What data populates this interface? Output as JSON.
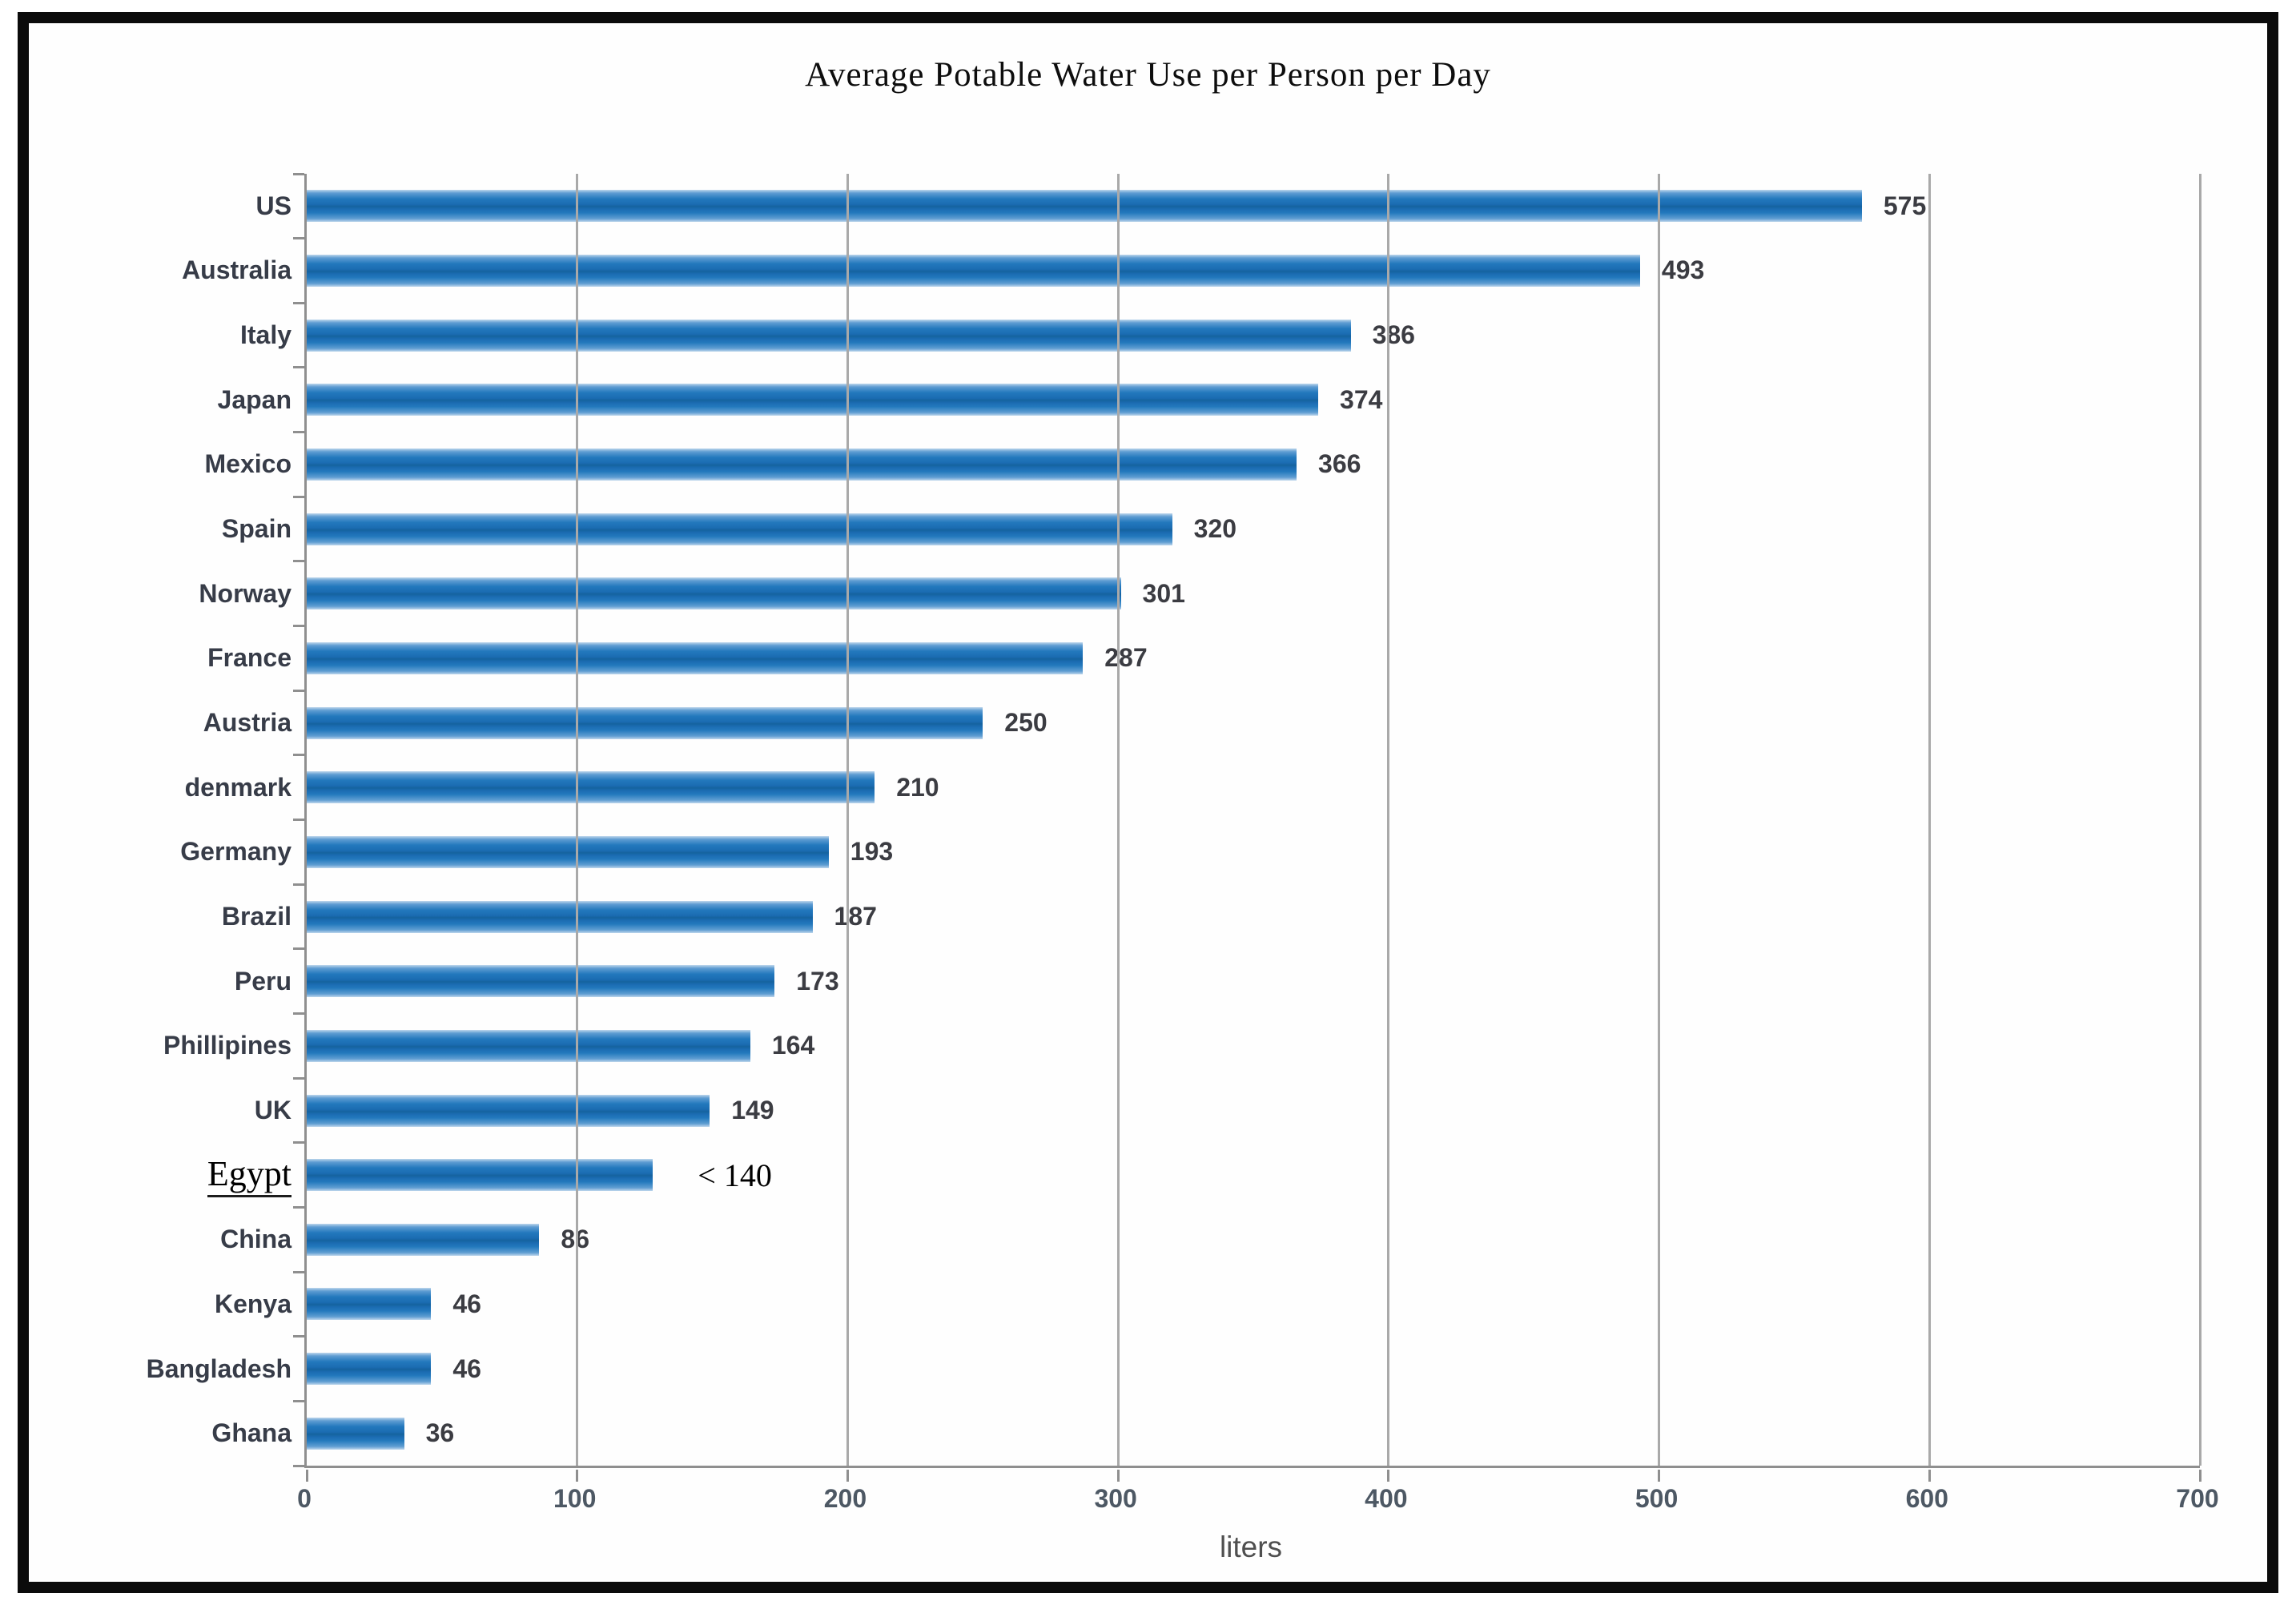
{
  "title": "Average Potable Water Use per Person per Day",
  "chart_data": {
    "type": "bar",
    "orientation": "horizontal",
    "title": "Average Potable Water Use per Person per Day",
    "xlabel": "liters",
    "ylabel": "",
    "xlim": [
      0,
      700
    ],
    "x_ticks": [
      "0",
      "100",
      "200",
      "300",
      "400",
      "500",
      "600",
      "700"
    ],
    "grid": "vertical gridlines at every 100 liters",
    "legend": "none",
    "categories": [
      "US",
      "Australia",
      "Italy",
      "Japan",
      "Mexico",
      "Spain",
      "Norway",
      "France",
      "Austria",
      "denmark",
      "Germany",
      "Brazil",
      "Peru",
      "Phillipines",
      "UK",
      "Egypt",
      "China",
      "Kenya",
      "Bangladesh",
      "Ghana"
    ],
    "values": [
      575,
      493,
      386,
      374,
      366,
      320,
      301,
      287,
      250,
      210,
      193,
      187,
      173,
      164,
      149,
      128,
      86,
      46,
      46,
      36
    ],
    "value_labels": [
      "575",
      "493",
      "386",
      "374",
      "366",
      "320",
      "301",
      "287",
      "250",
      "210",
      "193",
      "187",
      "173",
      "164",
      "149",
      "< 140",
      "86",
      "46",
      "46",
      "36"
    ],
    "annotated_rows": [
      "Egypt"
    ],
    "annotation_note": "Egypt row label and its value '< 140' are drawn in a serif annotation font; Egypt bar drawn at ~128",
    "rows": [
      {
        "label": "US",
        "value": 575,
        "display": "575",
        "annotated": false
      },
      {
        "label": "Australia",
        "value": 493,
        "display": "493",
        "annotated": false
      },
      {
        "label": "Italy",
        "value": 386,
        "display": "386",
        "annotated": false
      },
      {
        "label": "Japan",
        "value": 374,
        "display": "374",
        "annotated": false
      },
      {
        "label": "Mexico",
        "value": 366,
        "display": "366",
        "annotated": false
      },
      {
        "label": "Spain",
        "value": 320,
        "display": "320",
        "annotated": false
      },
      {
        "label": "Norway",
        "value": 301,
        "display": "301",
        "annotated": false
      },
      {
        "label": "France",
        "value": 287,
        "display": "287",
        "annotated": false
      },
      {
        "label": "Austria",
        "value": 250,
        "display": "250",
        "annotated": false
      },
      {
        "label": "denmark",
        "value": 210,
        "display": "210",
        "annotated": false
      },
      {
        "label": "Germany",
        "value": 193,
        "display": "193",
        "annotated": false
      },
      {
        "label": "Brazil",
        "value": 187,
        "display": "187",
        "annotated": false
      },
      {
        "label": "Peru",
        "value": 173,
        "display": "173",
        "annotated": false
      },
      {
        "label": "Phillipines",
        "value": 164,
        "display": "164",
        "annotated": false
      },
      {
        "label": "UK",
        "value": 149,
        "display": "149",
        "annotated": false
      },
      {
        "label": "Egypt",
        "value": 128,
        "display": "< 140",
        "annotated": true
      },
      {
        "label": "China",
        "value": 86,
        "display": "86",
        "annotated": false
      },
      {
        "label": "Kenya",
        "value": 46,
        "display": "46",
        "annotated": false
      },
      {
        "label": "Bangladesh",
        "value": 46,
        "display": "46",
        "annotated": false
      },
      {
        "label": "Ghana",
        "value": 36,
        "display": "36",
        "annotated": false
      }
    ]
  },
  "x_axis": {
    "tick_labels": [
      "0",
      "100",
      "200",
      "300",
      "400",
      "500",
      "600",
      "700"
    ],
    "axis_label": "liters"
  },
  "colors": {
    "bar_main": "#1b6cb2",
    "bar_edge_highlight": "#bdd6ec",
    "gridline": "#a9a9a9",
    "axis_line": "#8f8f8f",
    "category_label": "#373c48",
    "value_label": "#3b3c42",
    "tick_label": "#4d5864",
    "axis_title": "#4f4f4f",
    "annotation_text": "#000000",
    "frame_border": "#0b0b0b",
    "background": "#ffffff"
  }
}
